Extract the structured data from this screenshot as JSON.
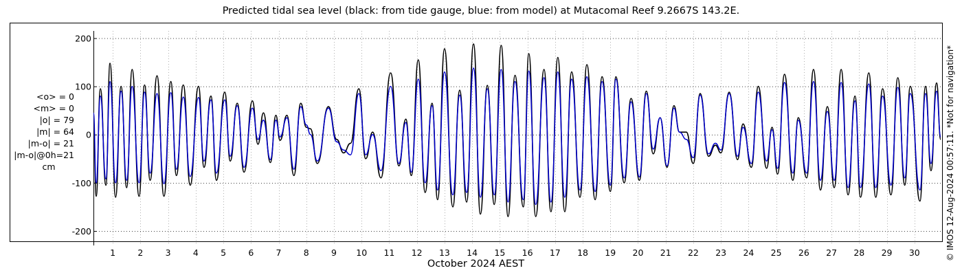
{
  "chart_data": {
    "type": "line",
    "title": "Predicted tidal sea level (black: from tide gauge, blue: from model) at Mutacomal Reef 9.2667S 143.2E.",
    "xlabel": "October 2024 AEST",
    "ylabel": "",
    "xlim": [
      0.3,
      31.0
    ],
    "ylim": [
      -230,
      215
    ],
    "yticks": [
      -200,
      -100,
      0,
      100,
      200
    ],
    "ytick_labels": [
      "-200",
      "-100",
      "0",
      "100",
      "200"
    ],
    "xticks": [
      1,
      2,
      3,
      4,
      5,
      6,
      7,
      8,
      9,
      10,
      11,
      12,
      13,
      14,
      15,
      16,
      17,
      18,
      19,
      20,
      21,
      22,
      23,
      24,
      25,
      26,
      27,
      28,
      29,
      30
    ],
    "xtick_labels": [
      "1",
      "2",
      "3",
      "4",
      "5",
      "6",
      "7",
      "8",
      "9",
      "10",
      "11",
      "12",
      "13",
      "14",
      "15",
      "16",
      "17",
      "18",
      "19",
      "20",
      "21",
      "22",
      "23",
      "24",
      "25",
      "26",
      "27",
      "28",
      "29",
      "30"
    ],
    "grid": true,
    "series": [
      {
        "color": "#000000",
        "peaks": [
          [
            0.3,
            30
          ],
          [
            0.4,
            -128
          ],
          [
            0.55,
            95
          ],
          [
            0.75,
            -105
          ],
          [
            0.9,
            148
          ],
          [
            1.1,
            -130
          ],
          [
            1.3,
            100
          ],
          [
            1.5,
            -110
          ],
          [
            1.7,
            135
          ],
          [
            1.95,
            -128
          ],
          [
            2.15,
            103
          ],
          [
            2.35,
            -95
          ],
          [
            2.6,
            122
          ],
          [
            2.85,
            -128
          ],
          [
            3.1,
            110
          ],
          [
            3.3,
            -85
          ],
          [
            3.55,
            103
          ],
          [
            3.8,
            -105
          ],
          [
            4.1,
            100
          ],
          [
            4.3,
            -68
          ],
          [
            4.55,
            80
          ],
          [
            4.75,
            -95
          ],
          [
            5.05,
            88
          ],
          [
            5.25,
            -55
          ],
          [
            5.5,
            65
          ],
          [
            5.75,
            -78
          ],
          [
            6.05,
            70
          ],
          [
            6.25,
            -20
          ],
          [
            6.45,
            45
          ],
          [
            6.7,
            -58
          ],
          [
            6.9,
            40
          ],
          [
            7.05,
            -12
          ],
          [
            7.3,
            40
          ],
          [
            7.55,
            -85
          ],
          [
            7.8,
            65
          ],
          [
            8.0,
            15
          ],
          [
            8.15,
            12
          ],
          [
            8.4,
            -60
          ],
          [
            8.8,
            58
          ],
          [
            9.1,
            -10
          ],
          [
            9.35,
            -38
          ],
          [
            9.6,
            -18
          ],
          [
            9.9,
            95
          ],
          [
            10.15,
            -50
          ],
          [
            10.4,
            5
          ],
          [
            10.7,
            -90
          ],
          [
            11.05,
            128
          ],
          [
            11.35,
            -65
          ],
          [
            11.6,
            32
          ],
          [
            11.8,
            -85
          ],
          [
            12.05,
            155
          ],
          [
            12.3,
            -120
          ],
          [
            12.55,
            65
          ],
          [
            12.75,
            -135
          ],
          [
            13.0,
            178
          ],
          [
            13.3,
            -150
          ],
          [
            13.55,
            92
          ],
          [
            13.8,
            -140
          ],
          [
            14.05,
            188
          ],
          [
            14.3,
            -165
          ],
          [
            14.55,
            102
          ],
          [
            14.8,
            -145
          ],
          [
            15.05,
            185
          ],
          [
            15.3,
            -170
          ],
          [
            15.55,
            123
          ],
          [
            15.85,
            -150
          ],
          [
            16.05,
            168
          ],
          [
            16.3,
            -170
          ],
          [
            16.6,
            135
          ],
          [
            16.85,
            -160
          ],
          [
            17.1,
            160
          ],
          [
            17.35,
            -160
          ],
          [
            17.6,
            130
          ],
          [
            17.9,
            -130
          ],
          [
            18.15,
            145
          ],
          [
            18.45,
            -135
          ],
          [
            18.7,
            120
          ],
          [
            19.0,
            -118
          ],
          [
            19.2,
            120
          ],
          [
            19.5,
            -100
          ],
          [
            19.75,
            75
          ],
          [
            20.05,
            -95
          ],
          [
            20.3,
            90
          ],
          [
            20.55,
            -40
          ],
          [
            20.8,
            35
          ],
          [
            21.05,
            -68
          ],
          [
            21.3,
            60
          ],
          [
            21.5,
            5
          ],
          [
            21.75,
            5
          ],
          [
            22.0,
            -60
          ],
          [
            22.25,
            85
          ],
          [
            22.55,
            -45
          ],
          [
            22.8,
            -22
          ],
          [
            23.0,
            -38
          ],
          [
            23.3,
            88
          ],
          [
            23.6,
            -52
          ],
          [
            23.8,
            22
          ],
          [
            24.1,
            -68
          ],
          [
            24.35,
            100
          ],
          [
            24.65,
            -70
          ],
          [
            24.85,
            15
          ],
          [
            25.05,
            -82
          ],
          [
            25.3,
            125
          ],
          [
            25.6,
            -95
          ],
          [
            25.8,
            35
          ],
          [
            26.1,
            -90
          ],
          [
            26.35,
            135
          ],
          [
            26.6,
            -115
          ],
          [
            26.85,
            58
          ],
          [
            27.1,
            -110
          ],
          [
            27.35,
            135
          ],
          [
            27.6,
            -125
          ],
          [
            27.85,
            80
          ],
          [
            28.05,
            -130
          ],
          [
            28.35,
            128
          ],
          [
            28.6,
            -130
          ],
          [
            28.85,
            95
          ],
          [
            29.15,
            -125
          ],
          [
            29.4,
            118
          ],
          [
            29.65,
            -105
          ],
          [
            29.85,
            100
          ],
          [
            30.2,
            -138
          ],
          [
            30.4,
            100
          ],
          [
            30.6,
            -75
          ],
          [
            30.8,
            107
          ],
          [
            30.95,
            -10
          ]
        ]
      },
      {
        "color": "#0000cc",
        "peaks": [
          [
            0.3,
            45
          ],
          [
            0.4,
            -100
          ],
          [
            0.55,
            80
          ],
          [
            0.75,
            -92
          ],
          [
            0.9,
            110
          ],
          [
            1.1,
            -100
          ],
          [
            1.3,
            90
          ],
          [
            1.5,
            -95
          ],
          [
            1.7,
            100
          ],
          [
            1.95,
            -100
          ],
          [
            2.15,
            88
          ],
          [
            2.35,
            -80
          ],
          [
            2.6,
            85
          ],
          [
            2.85,
            -102
          ],
          [
            3.1,
            87
          ],
          [
            3.3,
            -72
          ],
          [
            3.55,
            78
          ],
          [
            3.8,
            -87
          ],
          [
            4.1,
            77
          ],
          [
            4.3,
            -55
          ],
          [
            4.55,
            72
          ],
          [
            4.75,
            -80
          ],
          [
            5.05,
            72
          ],
          [
            5.25,
            -45
          ],
          [
            5.5,
            60
          ],
          [
            5.75,
            -68
          ],
          [
            6.05,
            55
          ],
          [
            6.25,
            -10
          ],
          [
            6.45,
            30
          ],
          [
            6.7,
            -52
          ],
          [
            6.9,
            30
          ],
          [
            7.05,
            -5
          ],
          [
            7.3,
            35
          ],
          [
            7.55,
            -72
          ],
          [
            7.8,
            58
          ],
          [
            8.0,
            20
          ],
          [
            8.15,
            0
          ],
          [
            8.4,
            -55
          ],
          [
            8.8,
            55
          ],
          [
            9.1,
            -15
          ],
          [
            9.35,
            -32
          ],
          [
            9.6,
            -42
          ],
          [
            9.9,
            85
          ],
          [
            10.15,
            -42
          ],
          [
            10.4,
            0
          ],
          [
            10.7,
            -75
          ],
          [
            11.05,
            100
          ],
          [
            11.35,
            -60
          ],
          [
            11.6,
            25
          ],
          [
            11.8,
            -78
          ],
          [
            12.05,
            115
          ],
          [
            12.3,
            -100
          ],
          [
            12.55,
            60
          ],
          [
            12.75,
            -115
          ],
          [
            13.0,
            130
          ],
          [
            13.3,
            -125
          ],
          [
            13.55,
            82
          ],
          [
            13.8,
            -120
          ],
          [
            14.05,
            138
          ],
          [
            14.3,
            -130
          ],
          [
            14.55,
            95
          ],
          [
            14.8,
            -125
          ],
          [
            15.05,
            135
          ],
          [
            15.3,
            -140
          ],
          [
            15.55,
            110
          ],
          [
            15.85,
            -135
          ],
          [
            16.05,
            132
          ],
          [
            16.3,
            -145
          ],
          [
            16.6,
            118
          ],
          [
            16.85,
            -140
          ],
          [
            17.1,
            130
          ],
          [
            17.35,
            -130
          ],
          [
            17.6,
            115
          ],
          [
            17.9,
            -115
          ],
          [
            18.15,
            120
          ],
          [
            18.45,
            -118
          ],
          [
            18.7,
            110
          ],
          [
            19.0,
            -105
          ],
          [
            19.2,
            115
          ],
          [
            19.5,
            -90
          ],
          [
            19.75,
            68
          ],
          [
            20.05,
            -88
          ],
          [
            20.3,
            85
          ],
          [
            20.55,
            -30
          ],
          [
            20.8,
            35
          ],
          [
            21.05,
            -65
          ],
          [
            21.3,
            55
          ],
          [
            21.5,
            5
          ],
          [
            21.75,
            -10
          ],
          [
            22.0,
            -48
          ],
          [
            22.25,
            82
          ],
          [
            22.55,
            -40
          ],
          [
            22.8,
            -18
          ],
          [
            23.0,
            -32
          ],
          [
            23.3,
            85
          ],
          [
            23.6,
            -45
          ],
          [
            23.8,
            15
          ],
          [
            24.1,
            -60
          ],
          [
            24.35,
            88
          ],
          [
            24.65,
            -55
          ],
          [
            24.85,
            10
          ],
          [
            25.05,
            -70
          ],
          [
            25.3,
            108
          ],
          [
            25.6,
            -80
          ],
          [
            25.8,
            30
          ],
          [
            26.1,
            -80
          ],
          [
            26.35,
            110
          ],
          [
            26.6,
            -95
          ],
          [
            26.85,
            48
          ],
          [
            27.1,
            -95
          ],
          [
            27.35,
            108
          ],
          [
            27.6,
            -110
          ],
          [
            27.85,
            70
          ],
          [
            28.05,
            -110
          ],
          [
            28.35,
            105
          ],
          [
            28.6,
            -110
          ],
          [
            28.85,
            80
          ],
          [
            29.15,
            -105
          ],
          [
            29.4,
            98
          ],
          [
            29.65,
            -90
          ],
          [
            29.85,
            85
          ],
          [
            30.2,
            -115
          ],
          [
            30.4,
            85
          ],
          [
            30.6,
            -60
          ],
          [
            30.8,
            90
          ],
          [
            30.95,
            -5
          ]
        ]
      }
    ]
  },
  "stats": {
    "lines": [
      "<o> = 0",
      "<m> = 0",
      "|o| = 79",
      "|m| = 64",
      "|m-o| = 21",
      "|m-o|@0h=21"
    ],
    "unit": "cm"
  },
  "copyright": "© IMOS 12-Aug-2024 00:57:11. *Not for navigation*"
}
